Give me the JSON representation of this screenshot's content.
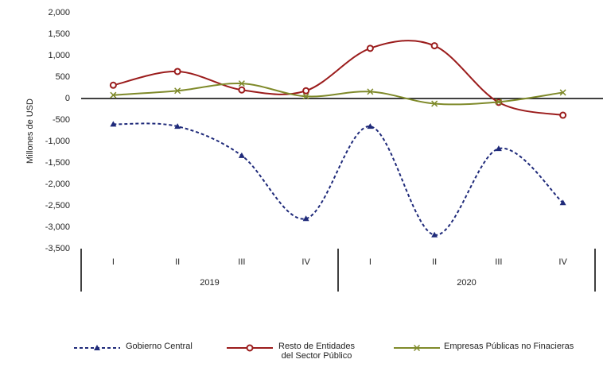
{
  "chart_data": {
    "type": "line",
    "y_label": "Millones de USD",
    "groups": [
      {
        "name": "2019",
        "categories": [
          "I",
          "II",
          "III",
          "IV"
        ]
      },
      {
        "name": "2020",
        "categories": [
          "I",
          "II",
          "III",
          "IV"
        ]
      }
    ],
    "series": [
      {
        "name": "Gobierno Central",
        "color": "#1f2a7a",
        "dash": true,
        "marker": "triangle",
        "values": [
          -600,
          -650,
          -1330,
          -2800,
          -650,
          -3180,
          -1170,
          -2430
        ]
      },
      {
        "name": "Resto de Entidades\ndel Sector Público",
        "color": "#9b1c1c",
        "dash": false,
        "marker": "circle",
        "values": [
          310,
          630,
          200,
          180,
          1170,
          1230,
          -90,
          -390
        ]
      },
      {
        "name": "Empresas Públicas no Finacieras",
        "color": "#7f8a2a",
        "dash": false,
        "marker": "x",
        "values": [
          80,
          180,
          350,
          50,
          160,
          -120,
          -80,
          140
        ]
      }
    ],
    "ylim": [
      -3500,
      2000
    ],
    "yticks": [
      {
        "value": 2000,
        "label": "2,000"
      },
      {
        "value": 1500,
        "label": "1,500"
      },
      {
        "value": 1000,
        "label": "1,000"
      },
      500,
      0,
      -500,
      {
        "value": -1000,
        "label": "-1,000"
      },
      {
        "value": -1500,
        "label": "-1,500"
      },
      {
        "value": -2000,
        "label": "-2,000"
      },
      {
        "value": -2500,
        "label": "-2,500"
      },
      {
        "value": -3000,
        "label": "-3,000"
      },
      {
        "value": -3500,
        "label": "-3,500"
      }
    ]
  }
}
